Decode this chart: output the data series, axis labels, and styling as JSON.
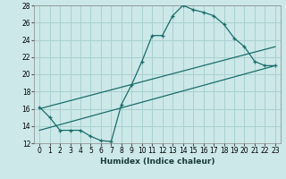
{
  "xlabel": "Humidex (Indice chaleur)",
  "bg_color": "#cce8e8",
  "grid_color": "#a8d0d0",
  "line_color": "#1a6e6a",
  "xlim": [
    -0.5,
    23.5
  ],
  "ylim": [
    12,
    28
  ],
  "xticks": [
    0,
    1,
    2,
    3,
    4,
    5,
    6,
    7,
    8,
    9,
    10,
    11,
    12,
    13,
    14,
    15,
    16,
    17,
    18,
    19,
    20,
    21,
    22,
    23
  ],
  "yticks": [
    12,
    14,
    16,
    18,
    20,
    22,
    24,
    26,
    28
  ],
  "line1_x": [
    0,
    1,
    2,
    3,
    4,
    5,
    6,
    7,
    8,
    9,
    10,
    11,
    12,
    13,
    14,
    15,
    16,
    17,
    18,
    19,
    20,
    21,
    22,
    23
  ],
  "line1_y": [
    16.2,
    15.0,
    13.5,
    13.5,
    13.5,
    12.8,
    12.3,
    12.2,
    16.5,
    18.8,
    21.5,
    24.5,
    24.5,
    26.8,
    28.0,
    27.5,
    27.2,
    26.8,
    25.8,
    24.2,
    23.2,
    21.5,
    21.0,
    21.0
  ],
  "line2_x": [
    0,
    23
  ],
  "line2_y": [
    16.0,
    23.2
  ],
  "line3_x": [
    0,
    23
  ],
  "line3_y": [
    13.5,
    21.0
  ]
}
